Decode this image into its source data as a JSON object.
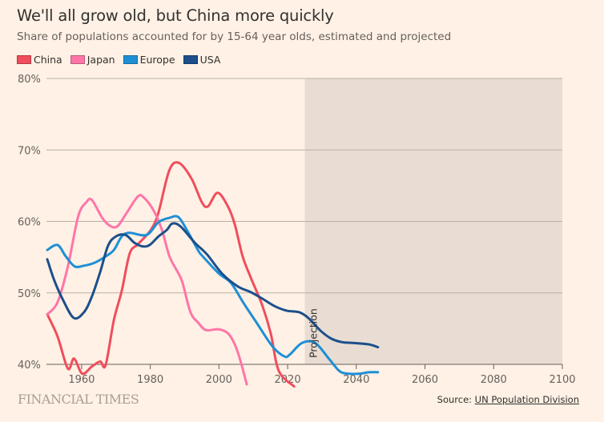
{
  "header": {
    "title": "We'll all grow old, but China more quickly",
    "subtitle": "Share of populations accounted for by 15-64 year olds, estimated and projected"
  },
  "footer": {
    "brand": "FINANCIAL TIMES",
    "source_label": "Source: ",
    "source_link": "UN Population Division"
  },
  "chart_data": {
    "type": "line",
    "title": "We'll all grow old, but China more quickly",
    "subtitle": "Share of populations accounted for by 15-64 year olds, estimated and projected",
    "xlim": [
      1950,
      2100
    ],
    "ylim": [
      40,
      80
    ],
    "x_ticks": [
      1960,
      1980,
      2000,
      2020,
      2040,
      2060,
      2080,
      2100
    ],
    "y_ticks": [
      40,
      50,
      60,
      70,
      80
    ],
    "y_tick_labels": [
      "40%",
      "50%",
      "60%",
      "70%",
      "80%"
    ],
    "grid": true,
    "legend_position": "top-left",
    "projection": {
      "label": "Projection",
      "from": 2025,
      "to": 2100,
      "color": "#e9ddd3"
    },
    "series": [
      {
        "name": "China",
        "color": "#f04d5d",
        "x": [
          1950,
          1953,
          1956,
          1957.8,
          1960.2,
          1963,
          1965.4,
          1967,
          1969.4,
          1971.7,
          1974,
          1976.4,
          1980,
          1982.3,
          1985.5,
          1988.3,
          1992,
          1995,
          1996.8,
          1999.6,
          2002.6,
          2004.6,
          2006.9,
          2009.3,
          2012.5,
          2015.1,
          2017.4,
          2021.9
        ],
        "y": [
          47.0,
          43.9,
          39.4,
          40.8,
          38.7,
          39.7,
          40.4,
          39.9,
          46.2,
          50.3,
          55.5,
          56.8,
          58.7,
          61.1,
          67.1,
          68.2,
          66.0,
          62.7,
          62.1,
          64.0,
          62.1,
          59.6,
          55.1,
          52.1,
          48.4,
          44.3,
          39.1,
          36.9
        ]
      },
      {
        "name": "Japan",
        "color": "#ff75a8",
        "x": [
          1950,
          1953,
          1956,
          1959,
          1961.4,
          1963,
          1966,
          1968.2,
          1970.4,
          1973,
          1976.4,
          1978.2,
          1981,
          1983.4,
          1985.6,
          1988,
          1989.4,
          1991.7,
          1994,
          1996.2,
          2000,
          2002.7,
          2004.6,
          2006.2,
          2008.1
        ],
        "y": [
          47.0,
          48.7,
          53.7,
          60.7,
          62.7,
          63.0,
          60.5,
          59.4,
          59.3,
          61.1,
          63.5,
          63.3,
          61.5,
          58.8,
          55.1,
          52.9,
          51.4,
          47.3,
          45.8,
          44.8,
          44.9,
          44.3,
          42.8,
          40.6,
          37.2
        ]
      },
      {
        "name": "Europe",
        "color": "#1e8fd5",
        "x": [
          1950,
          1953,
          1955.4,
          1958,
          1960.7,
          1963.7,
          1967,
          1969.4,
          1971.7,
          1974,
          1978.9,
          1982.4,
          1985.6,
          1988.2,
          1991,
          1994,
          1995.3,
          2000,
          2003.5,
          2007,
          2011,
          2015.6,
          2019.1,
          2020.7,
          2024.2,
          2028,
          2032,
          2035,
          2037.4,
          2041.2,
          2043.6,
          2046.3
        ],
        "y": [
          56.0,
          56.7,
          55.1,
          53.7,
          53.8,
          54.2,
          55.1,
          56.0,
          57.9,
          58.4,
          58.1,
          59.9,
          60.5,
          60.6,
          58.5,
          55.9,
          55.1,
          52.7,
          51.4,
          48.7,
          45.8,
          42.5,
          41.1,
          41.4,
          43.0,
          43.0,
          40.8,
          39.1,
          38.7,
          38.7,
          38.9,
          38.9
        ]
      },
      {
        "name": "USA",
        "color": "#1c4f8b",
        "x": [
          1950,
          1952,
          1954.4,
          1957.7,
          1960.7,
          1963,
          1965.4,
          1967.7,
          1970,
          1972.8,
          1975.4,
          1977.8,
          1979.8,
          1982.4,
          1984.8,
          1986.4,
          1988.8,
          1993,
          1996.5,
          2000.9,
          2005.5,
          2009.3,
          2012.6,
          2016.4,
          2019.8,
          2023.3,
          2026,
          2029.6,
          2032.7,
          2035.9,
          2039,
          2043.6,
          2046.3
        ],
        "y": [
          54.7,
          51.8,
          49.2,
          46.5,
          47.3,
          49.5,
          52.9,
          56.6,
          57.9,
          58.1,
          57.0,
          56.5,
          56.7,
          57.9,
          58.8,
          59.7,
          59.3,
          57.0,
          55.4,
          52.7,
          50.9,
          50.1,
          49.2,
          48.1,
          47.5,
          47.3,
          46.5,
          44.7,
          43.6,
          43.1,
          43.0,
          42.8,
          42.4
        ]
      }
    ]
  }
}
